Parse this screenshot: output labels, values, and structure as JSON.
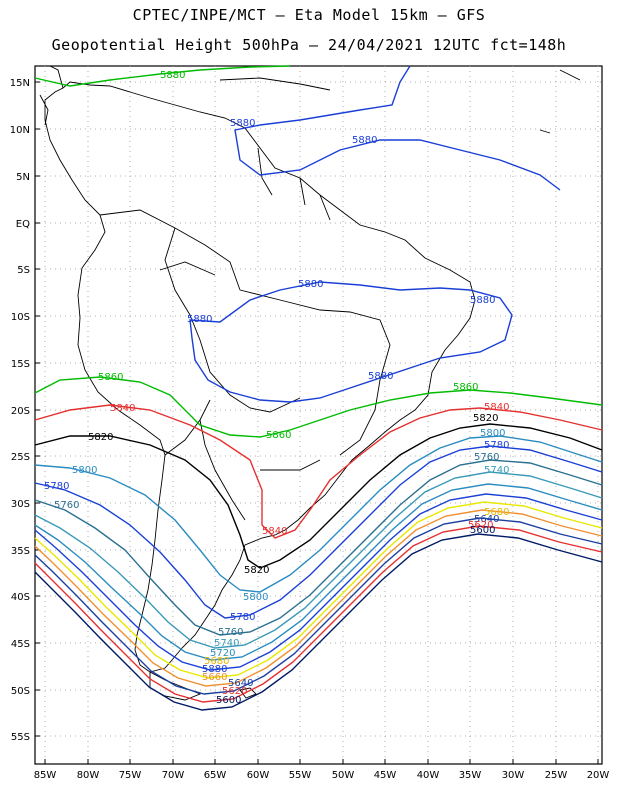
{
  "title_line1": "CPTEC/INPE/MCT –  Eta Model 15km – GFS",
  "title_line2": "Geopotential Height 500hPa – 24/04/2021 12UTC fct=148h",
  "lat_ticks": [
    "15N",
    "10N",
    "5N",
    "EQ",
    "5S",
    "10S",
    "15S",
    "20S",
    "25S",
    "30S",
    "35S",
    "40S",
    "45S",
    "50S",
    "55S"
  ],
  "lon_ticks": [
    "85W",
    "80W",
    "75W",
    "70W",
    "65W",
    "60W",
    "55W",
    "50W",
    "45W",
    "40W",
    "35W",
    "30W",
    "25W",
    "20W"
  ],
  "contour_labels": [
    {
      "id": "c5880-top",
      "text": "5880",
      "color": "#00bb00"
    },
    {
      "id": "c5880-n1",
      "text": "5880",
      "color": "#1a3fd6"
    },
    {
      "id": "c5880-n2",
      "text": "5880",
      "color": "#1a3fd6"
    },
    {
      "id": "c5880-a1",
      "text": "5880",
      "color": "#1a3fd6"
    },
    {
      "id": "c5880-a2",
      "text": "5880",
      "color": "#1a3fd6"
    },
    {
      "id": "c5880-a3",
      "text": "5880",
      "color": "#1a3fd6"
    },
    {
      "id": "c5880-a4",
      "text": "5880",
      "color": "#1a3fd6"
    },
    {
      "id": "c5860-w",
      "text": "5860",
      "color": "#00bb00"
    },
    {
      "id": "c5860-c",
      "text": "5860",
      "color": "#00bb00"
    },
    {
      "id": "c5860-e",
      "text": "5860",
      "color": "#00bb00"
    },
    {
      "id": "c5840-w",
      "text": "5840",
      "color": "#e53030"
    },
    {
      "id": "c5840-c",
      "text": "5840",
      "color": "#e53030"
    },
    {
      "id": "c5840-e",
      "text": "5840",
      "color": "#e53030"
    },
    {
      "id": "c5820-w",
      "text": "5820",
      "color": "#000000"
    },
    {
      "id": "c5820-c",
      "text": "5820",
      "color": "#000000"
    },
    {
      "id": "c5820-e",
      "text": "5820",
      "color": "#000000"
    },
    {
      "id": "c5800-w",
      "text": "5800",
      "color": "#2a8cc0"
    },
    {
      "id": "c5800-c",
      "text": "5800",
      "color": "#2a8cc0"
    },
    {
      "id": "c5800-e",
      "text": "5800",
      "color": "#2a8cc0"
    },
    {
      "id": "c5780-w",
      "text": "5780",
      "color": "#1a3fd6"
    },
    {
      "id": "c5780-c",
      "text": "5780",
      "color": "#1a3fd6"
    },
    {
      "id": "c5780-e",
      "text": "5780",
      "color": "#1a3fd6"
    },
    {
      "id": "c5760-w",
      "text": "5760",
      "color": "#2a7090"
    },
    {
      "id": "c5760-c",
      "text": "5760",
      "color": "#2a7090"
    },
    {
      "id": "c5760-e",
      "text": "5760",
      "color": "#2a7090"
    },
    {
      "id": "c5740-c",
      "text": "5740",
      "color": "#3a9ab8"
    },
    {
      "id": "c5740-e",
      "text": "5740",
      "color": "#3a9ab8"
    },
    {
      "id": "c5720-c",
      "text": "5720",
      "color": "#2a8cc0"
    },
    {
      "id": "c5680-c",
      "text": "5680",
      "color": "#e8b800"
    },
    {
      "id": "c5680-e",
      "text": "5680",
      "color": "#e8b800"
    },
    {
      "id": "c5660-c",
      "text": "5660",
      "color": "#f09030"
    },
    {
      "id": "c5640-c",
      "text": "5640",
      "color": "#1a3fa0"
    },
    {
      "id": "c5640-e",
      "text": "5640",
      "color": "#1a3fa0"
    },
    {
      "id": "c5620-c",
      "text": "5620",
      "color": "#e53030"
    },
    {
      "id": "c5620-e",
      "text": "5620",
      "color": "#e53030"
    },
    {
      "id": "c5600-c",
      "text": "5600",
      "color": "#001a66"
    },
    {
      "id": "c5600-e",
      "text": "5600",
      "color": "#001a66"
    },
    {
      "id": "c5880-b",
      "text": "5880",
      "color": "#1a3fd6"
    }
  ]
}
